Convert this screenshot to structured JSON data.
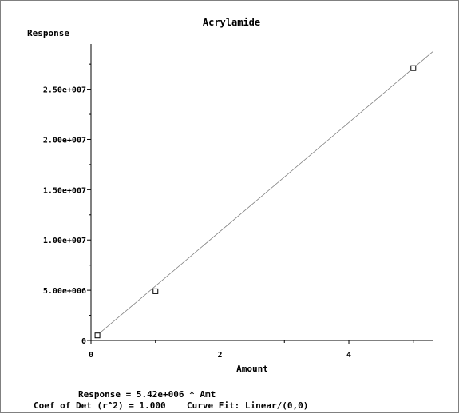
{
  "chart_data": {
    "type": "scatter",
    "title": "Acrylamide",
    "ylabel": "Response",
    "xlabel": "Amount",
    "xlim": [
      0,
      5.3
    ],
    "ylim": [
      0,
      29500000.0
    ],
    "x_ticks": [
      0,
      2,
      4
    ],
    "x_tick_labels": [
      "0",
      "2",
      "4"
    ],
    "y_ticks": [
      0,
      5000000,
      10000000,
      15000000,
      20000000,
      25000000
    ],
    "y_tick_labels": [
      "0",
      "5.00e+006",
      "1.00e+007",
      "1.50e+007",
      "2.00e+007",
      "2.50e+007"
    ],
    "points": [
      {
        "x": 0.1,
        "y": 500000
      },
      {
        "x": 1.0,
        "y": 4900000
      },
      {
        "x": 5.0,
        "y": 27100000
      }
    ],
    "fit": {
      "slope": 5420000,
      "intercept": 0,
      "x_range": [
        0.1,
        5.3
      ]
    },
    "grid": false,
    "equation_text": "Response = 5.42e+006 * Amt",
    "fit_info_text": "Coef of Det (r^2) = 1.000    Curve Fit: Linear/(0,0)"
  }
}
